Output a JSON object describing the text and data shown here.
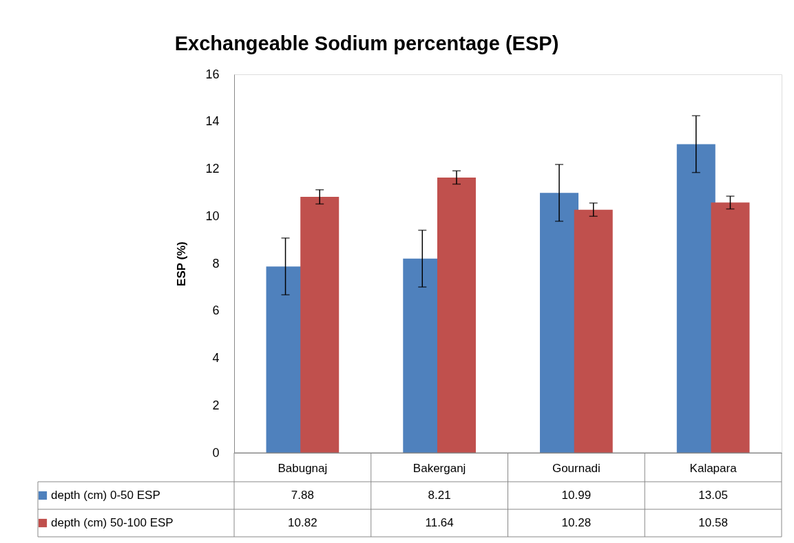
{
  "chart_data": {
    "type": "bar",
    "title": "Exchangeable Sodium percentage (ESP)",
    "ylabel": "ESP (%)",
    "categories": [
      "Babugnaj",
      "Bakerganj",
      "Gournadi",
      "Kalapara"
    ],
    "series": [
      {
        "name": "depth (cm) 0-50 ESP",
        "color": "#4f81bd",
        "values": [
          7.88,
          8.21,
          10.99,
          13.05
        ],
        "errors": [
          1.2,
          1.2,
          1.2,
          1.2
        ]
      },
      {
        "name": "depth (cm) 50-100 ESP",
        "color": "#c0504d",
        "values": [
          10.82,
          11.64,
          10.28,
          10.58
        ],
        "errors": [
          0.3,
          0.28,
          0.28,
          0.27
        ]
      }
    ],
    "ylim": [
      0,
      16
    ],
    "yticks": [
      0,
      2,
      4,
      6,
      8,
      10,
      12,
      14,
      16
    ],
    "grid": false,
    "legend": "bottom",
    "data_labels": true
  }
}
